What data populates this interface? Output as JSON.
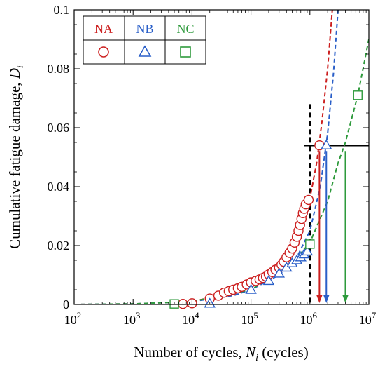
{
  "chart_data": {
    "type": "scatter",
    "xlabel": {
      "main": "Number of cycles, ",
      "symbol": "N",
      "sub": "i",
      "tail": " (cycles)"
    },
    "ylabel": {
      "main": "Cumulative fatigue damage, ",
      "symbol": "D",
      "sub": "i"
    },
    "x_scale": "log",
    "xlim": [
      100,
      10000000
    ],
    "ylim": [
      0,
      0.1
    ],
    "x_ticks": [
      {
        "base": "10",
        "exp": "2"
      },
      {
        "base": "10",
        "exp": "3"
      },
      {
        "base": "10",
        "exp": "4"
      },
      {
        "base": "10",
        "exp": "5"
      },
      {
        "base": "10",
        "exp": "6"
      },
      {
        "base": "10",
        "exp": "7"
      }
    ],
    "y_ticks": [
      "0",
      "0.02",
      "0.04",
      "0.06",
      "0.08",
      "0.1"
    ],
    "legend_position": "top-left",
    "series": [
      {
        "name": "NA",
        "color": "#cc1f1f",
        "marker": "circle",
        "points": [
          [
            7000,
            0.0002
          ],
          [
            10000,
            0.0004
          ],
          [
            20000,
            0.002
          ],
          [
            28000,
            0.003
          ],
          [
            35000,
            0.004
          ],
          [
            42000,
            0.0045
          ],
          [
            50000,
            0.005
          ],
          [
            60000,
            0.0055
          ],
          [
            70000,
            0.006
          ],
          [
            85000,
            0.0068
          ],
          [
            100000,
            0.0075
          ],
          [
            120000,
            0.008
          ],
          [
            140000,
            0.0085
          ],
          [
            160000,
            0.009
          ],
          [
            180000,
            0.0095
          ],
          [
            200000,
            0.0102
          ],
          [
            230000,
            0.011
          ],
          [
            260000,
            0.0118
          ],
          [
            300000,
            0.0125
          ],
          [
            330000,
            0.0135
          ],
          [
            360000,
            0.0145
          ],
          [
            400000,
            0.016
          ],
          [
            450000,
            0.0175
          ],
          [
            500000,
            0.019
          ],
          [
            550000,
            0.021
          ],
          [
            600000,
            0.023
          ],
          [
            640000,
            0.025
          ],
          [
            680000,
            0.027
          ],
          [
            720000,
            0.029
          ],
          [
            760000,
            0.031
          ],
          [
            800000,
            0.0325
          ],
          [
            850000,
            0.034
          ],
          [
            950000,
            0.0355
          ],
          [
            1450000,
            0.054
          ]
        ],
        "fit_curve": [
          [
            100,
            0
          ],
          [
            1000,
            0.0002
          ],
          [
            10000,
            0.001
          ],
          [
            50000,
            0.004
          ],
          [
            100000,
            0.007
          ],
          [
            200000,
            0.01
          ],
          [
            400000,
            0.015
          ],
          [
            700000,
            0.025
          ],
          [
            1000000,
            0.036
          ],
          [
            1300000,
            0.048
          ],
          [
            1600000,
            0.062
          ],
          [
            2000000,
            0.08
          ],
          [
            2400000,
            0.1
          ]
        ],
        "failure_cycles": 1450000
      },
      {
        "name": "NB",
        "color": "#2a5fc8",
        "marker": "triangle",
        "points": [
          [
            20000,
            0.0003
          ],
          [
            100000,
            0.005
          ],
          [
            200000,
            0.008
          ],
          [
            300000,
            0.0105
          ],
          [
            400000,
            0.0125
          ],
          [
            500000,
            0.014
          ],
          [
            600000,
            0.015
          ],
          [
            700000,
            0.016
          ],
          [
            800000,
            0.017
          ],
          [
            900000,
            0.018
          ],
          [
            1900000,
            0.054
          ]
        ],
        "fit_curve": [
          [
            100,
            0
          ],
          [
            1000,
            0.0002
          ],
          [
            10000,
            0.001
          ],
          [
            50000,
            0.003
          ],
          [
            100000,
            0.005
          ],
          [
            300000,
            0.01
          ],
          [
            600000,
            0.016
          ],
          [
            1000000,
            0.025
          ],
          [
            1500000,
            0.04
          ],
          [
            2000000,
            0.058
          ],
          [
            2500000,
            0.078
          ],
          [
            3000000,
            0.1
          ]
        ],
        "failure_cycles": 1900000
      },
      {
        "name": "NC",
        "color": "#2e9a3c",
        "marker": "square",
        "points": [
          [
            5000,
            0.0002
          ],
          [
            1000000,
            0.0205
          ],
          [
            6500000,
            0.071
          ]
        ],
        "fit_curve": [
          [
            100,
            0
          ],
          [
            1000,
            0.0002
          ],
          [
            10000,
            0.001
          ],
          [
            100000,
            0.005
          ],
          [
            500000,
            0.014
          ],
          [
            1000000,
            0.021
          ],
          [
            2000000,
            0.035
          ],
          [
            3000000,
            0.048
          ],
          [
            4000000,
            0.055
          ],
          [
            6500000,
            0.071
          ],
          [
            10000000,
            0.09
          ]
        ],
        "failure_cycles": 4000000
      }
    ],
    "reference_lines": {
      "vertical_x": 1000000,
      "horizontal_y": 0.054
    }
  }
}
